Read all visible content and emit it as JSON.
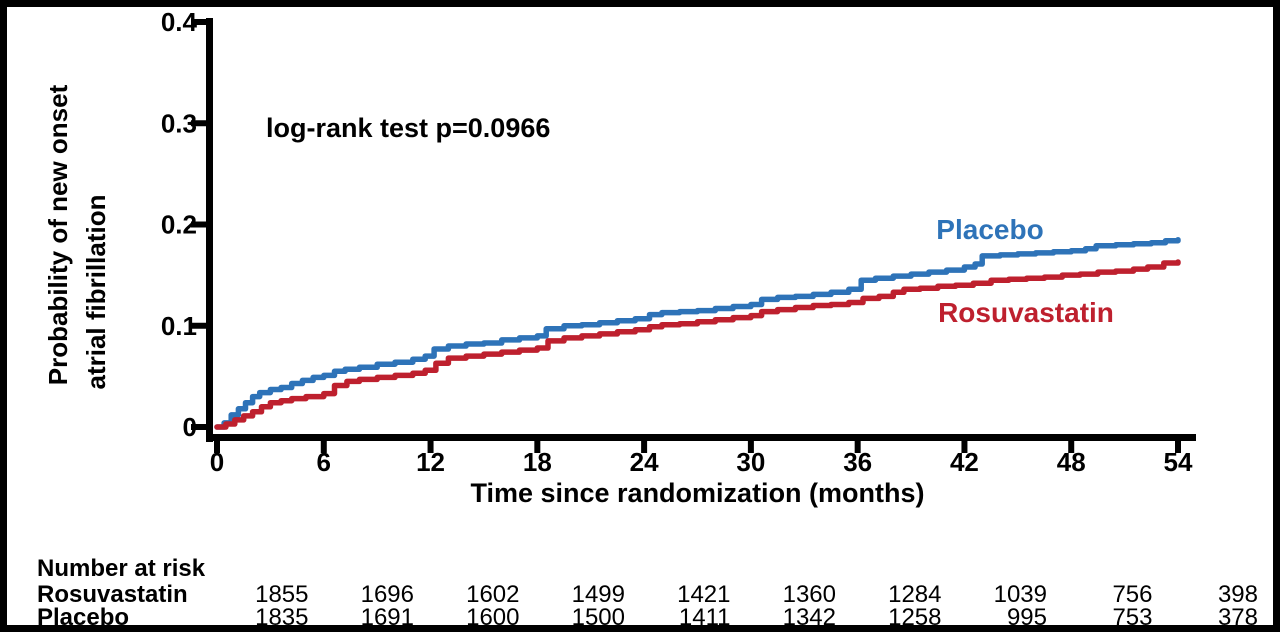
{
  "chart_data": {
    "type": "line",
    "subtype": "kaplan-meier-step",
    "title": "",
    "xlabel": "Time since randomization (months)",
    "ylabel_lines": [
      "Probability of new onset",
      "atrial fibrillation"
    ],
    "annotation": "log-rank test p=0.0966",
    "xlim": [
      0,
      54
    ],
    "ylim": [
      0,
      0.4
    ],
    "xticks": [
      0,
      6,
      12,
      18,
      24,
      30,
      36,
      42,
      48,
      54
    ],
    "yticks": [
      0,
      0.1,
      0.2,
      0.3,
      0.4
    ],
    "ytick_labels": [
      "0",
      "0.1",
      "0.2",
      "0.3",
      "0.4"
    ],
    "grid": false,
    "legend_position": "inline-labels-right",
    "series": [
      {
        "name": "Placebo",
        "color": "#2E73B8",
        "end_value": 0.185,
        "points": [
          [
            0,
            0
          ],
          [
            0.4,
            0.004
          ],
          [
            0.8,
            0.012
          ],
          [
            1.2,
            0.018
          ],
          [
            1.6,
            0.024
          ],
          [
            2,
            0.03
          ],
          [
            2.4,
            0.034
          ],
          [
            3,
            0.037
          ],
          [
            3.6,
            0.039
          ],
          [
            4.2,
            0.043
          ],
          [
            4.8,
            0.046
          ],
          [
            5.4,
            0.049
          ],
          [
            6,
            0.051
          ],
          [
            6.6,
            0.055
          ],
          [
            7.2,
            0.057
          ],
          [
            8,
            0.059
          ],
          [
            9,
            0.062
          ],
          [
            10,
            0.064
          ],
          [
            11,
            0.067
          ],
          [
            11.7,
            0.07
          ],
          [
            12.2,
            0.077
          ],
          [
            13,
            0.08
          ],
          [
            14,
            0.082
          ],
          [
            15,
            0.083
          ],
          [
            16,
            0.086
          ],
          [
            17,
            0.088
          ],
          [
            18,
            0.09
          ],
          [
            18.5,
            0.097
          ],
          [
            19.5,
            0.1
          ],
          [
            20.5,
            0.101
          ],
          [
            21.5,
            0.103
          ],
          [
            22.5,
            0.105
          ],
          [
            23.5,
            0.107
          ],
          [
            24.3,
            0.111
          ],
          [
            25,
            0.113
          ],
          [
            26,
            0.114
          ],
          [
            27,
            0.115
          ],
          [
            28,
            0.117
          ],
          [
            29,
            0.119
          ],
          [
            30,
            0.121
          ],
          [
            30.6,
            0.126
          ],
          [
            31.5,
            0.128
          ],
          [
            32.5,
            0.129
          ],
          [
            33.5,
            0.131
          ],
          [
            34.5,
            0.133
          ],
          [
            35.5,
            0.136
          ],
          [
            36.2,
            0.145
          ],
          [
            37,
            0.147
          ],
          [
            38,
            0.149
          ],
          [
            39,
            0.151
          ],
          [
            40,
            0.153
          ],
          [
            41,
            0.155
          ],
          [
            42,
            0.158
          ],
          [
            42.6,
            0.161
          ],
          [
            43,
            0.169
          ],
          [
            44,
            0.17
          ],
          [
            45,
            0.171
          ],
          [
            46,
            0.172
          ],
          [
            47,
            0.173
          ],
          [
            48,
            0.174
          ],
          [
            48.8,
            0.176
          ],
          [
            49.4,
            0.179
          ],
          [
            50.5,
            0.18
          ],
          [
            51.5,
            0.181
          ],
          [
            52.5,
            0.182
          ],
          [
            53.3,
            0.184
          ],
          [
            54,
            0.185
          ]
        ]
      },
      {
        "name": "Rosuvastatin",
        "color": "#BE202E",
        "end_value": 0.163,
        "points": [
          [
            0,
            0
          ],
          [
            0.5,
            0.003
          ],
          [
            1,
            0.007
          ],
          [
            1.5,
            0.011
          ],
          [
            2,
            0.015
          ],
          [
            2.5,
            0.02
          ],
          [
            3,
            0.024
          ],
          [
            3.6,
            0.026
          ],
          [
            4.2,
            0.028
          ],
          [
            5,
            0.03
          ],
          [
            6,
            0.033
          ],
          [
            6.6,
            0.041
          ],
          [
            7.3,
            0.045
          ],
          [
            8,
            0.047
          ],
          [
            9,
            0.049
          ],
          [
            10,
            0.051
          ],
          [
            11,
            0.053
          ],
          [
            11.7,
            0.056
          ],
          [
            12.3,
            0.063
          ],
          [
            13,
            0.068
          ],
          [
            14,
            0.07
          ],
          [
            15,
            0.072
          ],
          [
            16,
            0.074
          ],
          [
            17,
            0.076
          ],
          [
            18,
            0.078
          ],
          [
            18.6,
            0.085
          ],
          [
            19.5,
            0.088
          ],
          [
            20.5,
            0.09
          ],
          [
            21.5,
            0.092
          ],
          [
            22.5,
            0.094
          ],
          [
            23.5,
            0.096
          ],
          [
            24.3,
            0.099
          ],
          [
            25,
            0.101
          ],
          [
            26,
            0.102
          ],
          [
            27,
            0.104
          ],
          [
            28,
            0.106
          ],
          [
            29,
            0.108
          ],
          [
            30,
            0.11
          ],
          [
            30.6,
            0.114
          ],
          [
            31.5,
            0.116
          ],
          [
            32.5,
            0.118
          ],
          [
            33.5,
            0.12
          ],
          [
            34.5,
            0.121
          ],
          [
            35.5,
            0.123
          ],
          [
            36.3,
            0.127
          ],
          [
            37.2,
            0.129
          ],
          [
            38,
            0.133
          ],
          [
            38.6,
            0.136
          ],
          [
            39.5,
            0.137
          ],
          [
            40.5,
            0.139
          ],
          [
            41.5,
            0.14
          ],
          [
            42.5,
            0.142
          ],
          [
            43.5,
            0.145
          ],
          [
            44.5,
            0.146
          ],
          [
            45.5,
            0.147
          ],
          [
            46.5,
            0.148
          ],
          [
            47.5,
            0.15
          ],
          [
            48.5,
            0.151
          ],
          [
            49.5,
            0.153
          ],
          [
            50.5,
            0.154
          ],
          [
            51.5,
            0.156
          ],
          [
            52.3,
            0.158
          ],
          [
            53.2,
            0.162
          ],
          [
            54,
            0.163
          ]
        ]
      }
    ]
  },
  "risk_table": {
    "title": "Number at risk",
    "rows": [
      {
        "label": "Rosuvastatin",
        "values": [
          "1855",
          "1696",
          "1602",
          "1499",
          "1421",
          "1360",
          "1284",
          "1039",
          "756",
          "398"
        ]
      },
      {
        "label": "Placebo",
        "values": [
          "1835",
          "1691",
          "1600",
          "1500",
          "1411",
          "1342",
          "1258",
          "995",
          "753",
          "378"
        ]
      }
    ]
  },
  "colors": {
    "placebo": "#2E73B8",
    "rosuvastatin": "#BE202E",
    "axis": "#000000",
    "background": "#FFFFFF",
    "frame": "#000000"
  }
}
